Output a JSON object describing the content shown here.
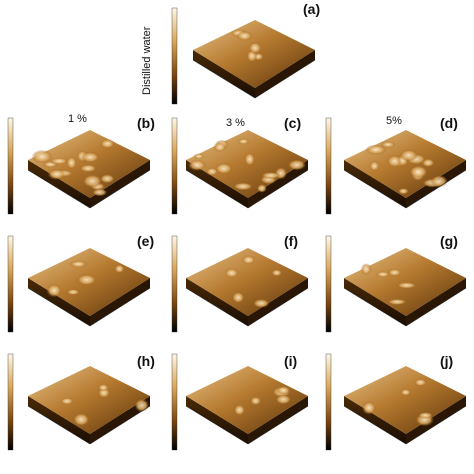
{
  "panels": [
    {
      "label": "(a)",
      "caption": "Distilled water"
    },
    {
      "label": "(b)",
      "caption": "1 %"
    },
    {
      "label": "(c)",
      "caption": "3 %"
    },
    {
      "label": "(d)",
      "caption": "5%"
    },
    {
      "label": "(e)"
    },
    {
      "label": "(f)"
    },
    {
      "label": "(g)"
    },
    {
      "label": "(h)"
    },
    {
      "label": "(i)"
    },
    {
      "label": "(j)"
    }
  ]
}
